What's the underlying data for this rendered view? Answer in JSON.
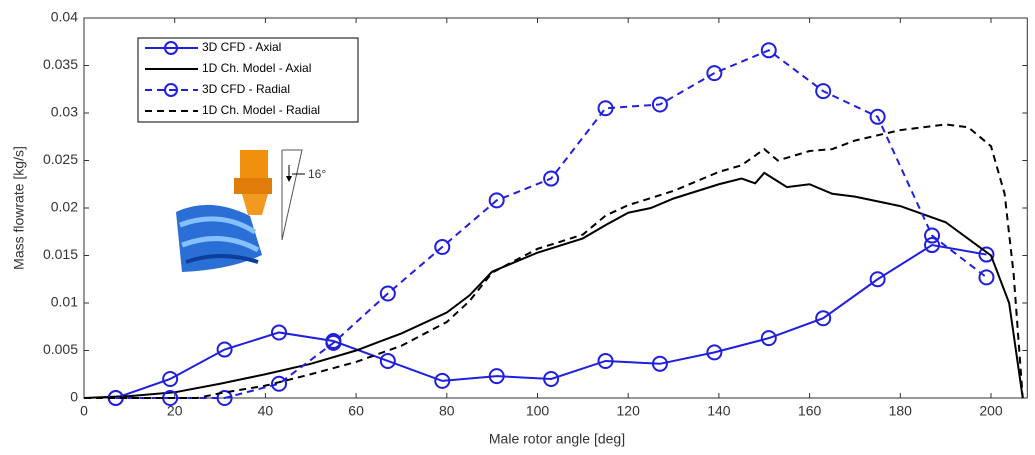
{
  "chart_data": {
    "type": "line",
    "xlabel": "Male rotor angle [deg]",
    "ylabel": "Mass flowrate [kg/s]",
    "xlim": [
      0,
      208
    ],
    "ylim": [
      0,
      0.04
    ],
    "xticks": [
      0,
      20,
      40,
      60,
      80,
      100,
      120,
      140,
      160,
      180,
      200
    ],
    "yticks": [
      0,
      0.005,
      0.01,
      0.015,
      0.02,
      0.025,
      0.03,
      0.035,
      0.04
    ],
    "annotation": "16°",
    "series": [
      {
        "name": "3D CFD - Axial",
        "color": "#1f1fe0",
        "dashed": false,
        "marker": "circle",
        "x": [
          7,
          19,
          31,
          43,
          55,
          67,
          79,
          91,
          103,
          115,
          127,
          139,
          151,
          163,
          175,
          187,
          199
        ],
        "values": [
          0,
          0.002,
          0.0051,
          0.0069,
          0.006,
          0.0039,
          0.0018,
          0.0023,
          0.002,
          0.0039,
          0.0036,
          0.0048,
          0.0063,
          0.0084,
          0.0125,
          0.0161,
          0.0151
        ]
      },
      {
        "name": "1D Ch. Model - Axial",
        "color": "#000000",
        "dashed": false,
        "marker": "none",
        "x": [
          0,
          10,
          20,
          30,
          40,
          50,
          60,
          70,
          80,
          85,
          90,
          100,
          110,
          115,
          120,
          125,
          130,
          140,
          145,
          148,
          150,
          155,
          160,
          165,
          170,
          180,
          190,
          200,
          204,
          207
        ],
        "values": [
          0,
          0.0002,
          0.0006,
          0.0015,
          0.0025,
          0.0036,
          0.005,
          0.0068,
          0.009,
          0.0108,
          0.0133,
          0.0153,
          0.0168,
          0.0182,
          0.0195,
          0.02,
          0.021,
          0.0225,
          0.0231,
          0.0226,
          0.0237,
          0.0222,
          0.0225,
          0.0215,
          0.0212,
          0.0202,
          0.0185,
          0.015,
          0.01,
          0
        ]
      },
      {
        "name": "3D CFD - Radial",
        "color": "#1f1fe0",
        "dashed": true,
        "marker": "circle",
        "x": [
          7,
          19,
          31,
          43,
          55,
          67,
          79,
          91,
          103,
          115,
          127,
          139,
          151,
          163,
          175,
          187,
          199
        ],
        "values": [
          0,
          0,
          0,
          0.0015,
          0.0058,
          0.011,
          0.0159,
          0.0208,
          0.0231,
          0.0305,
          0.0309,
          0.0342,
          0.0366,
          0.0323,
          0.0296,
          0.0171,
          0.0127
        ]
      },
      {
        "name": "1D Ch. Model - Radial",
        "color": "#000000",
        "dashed": true,
        "marker": "none",
        "x": [
          0,
          20,
          25,
          30,
          40,
          50,
          60,
          70,
          80,
          85,
          90,
          100,
          110,
          115,
          120,
          130,
          140,
          145,
          150,
          153,
          160,
          165,
          170,
          180,
          190,
          195,
          200,
          203,
          205,
          207
        ],
        "values": [
          0,
          0,
          0,
          0.0005,
          0.0013,
          0.0025,
          0.0038,
          0.0055,
          0.008,
          0.0102,
          0.0132,
          0.0157,
          0.0172,
          0.0192,
          0.0203,
          0.0218,
          0.0238,
          0.0245,
          0.0262,
          0.025,
          0.026,
          0.0262,
          0.0271,
          0.0282,
          0.0288,
          0.0285,
          0.0265,
          0.0215,
          0.013,
          0
        ]
      }
    ]
  }
}
